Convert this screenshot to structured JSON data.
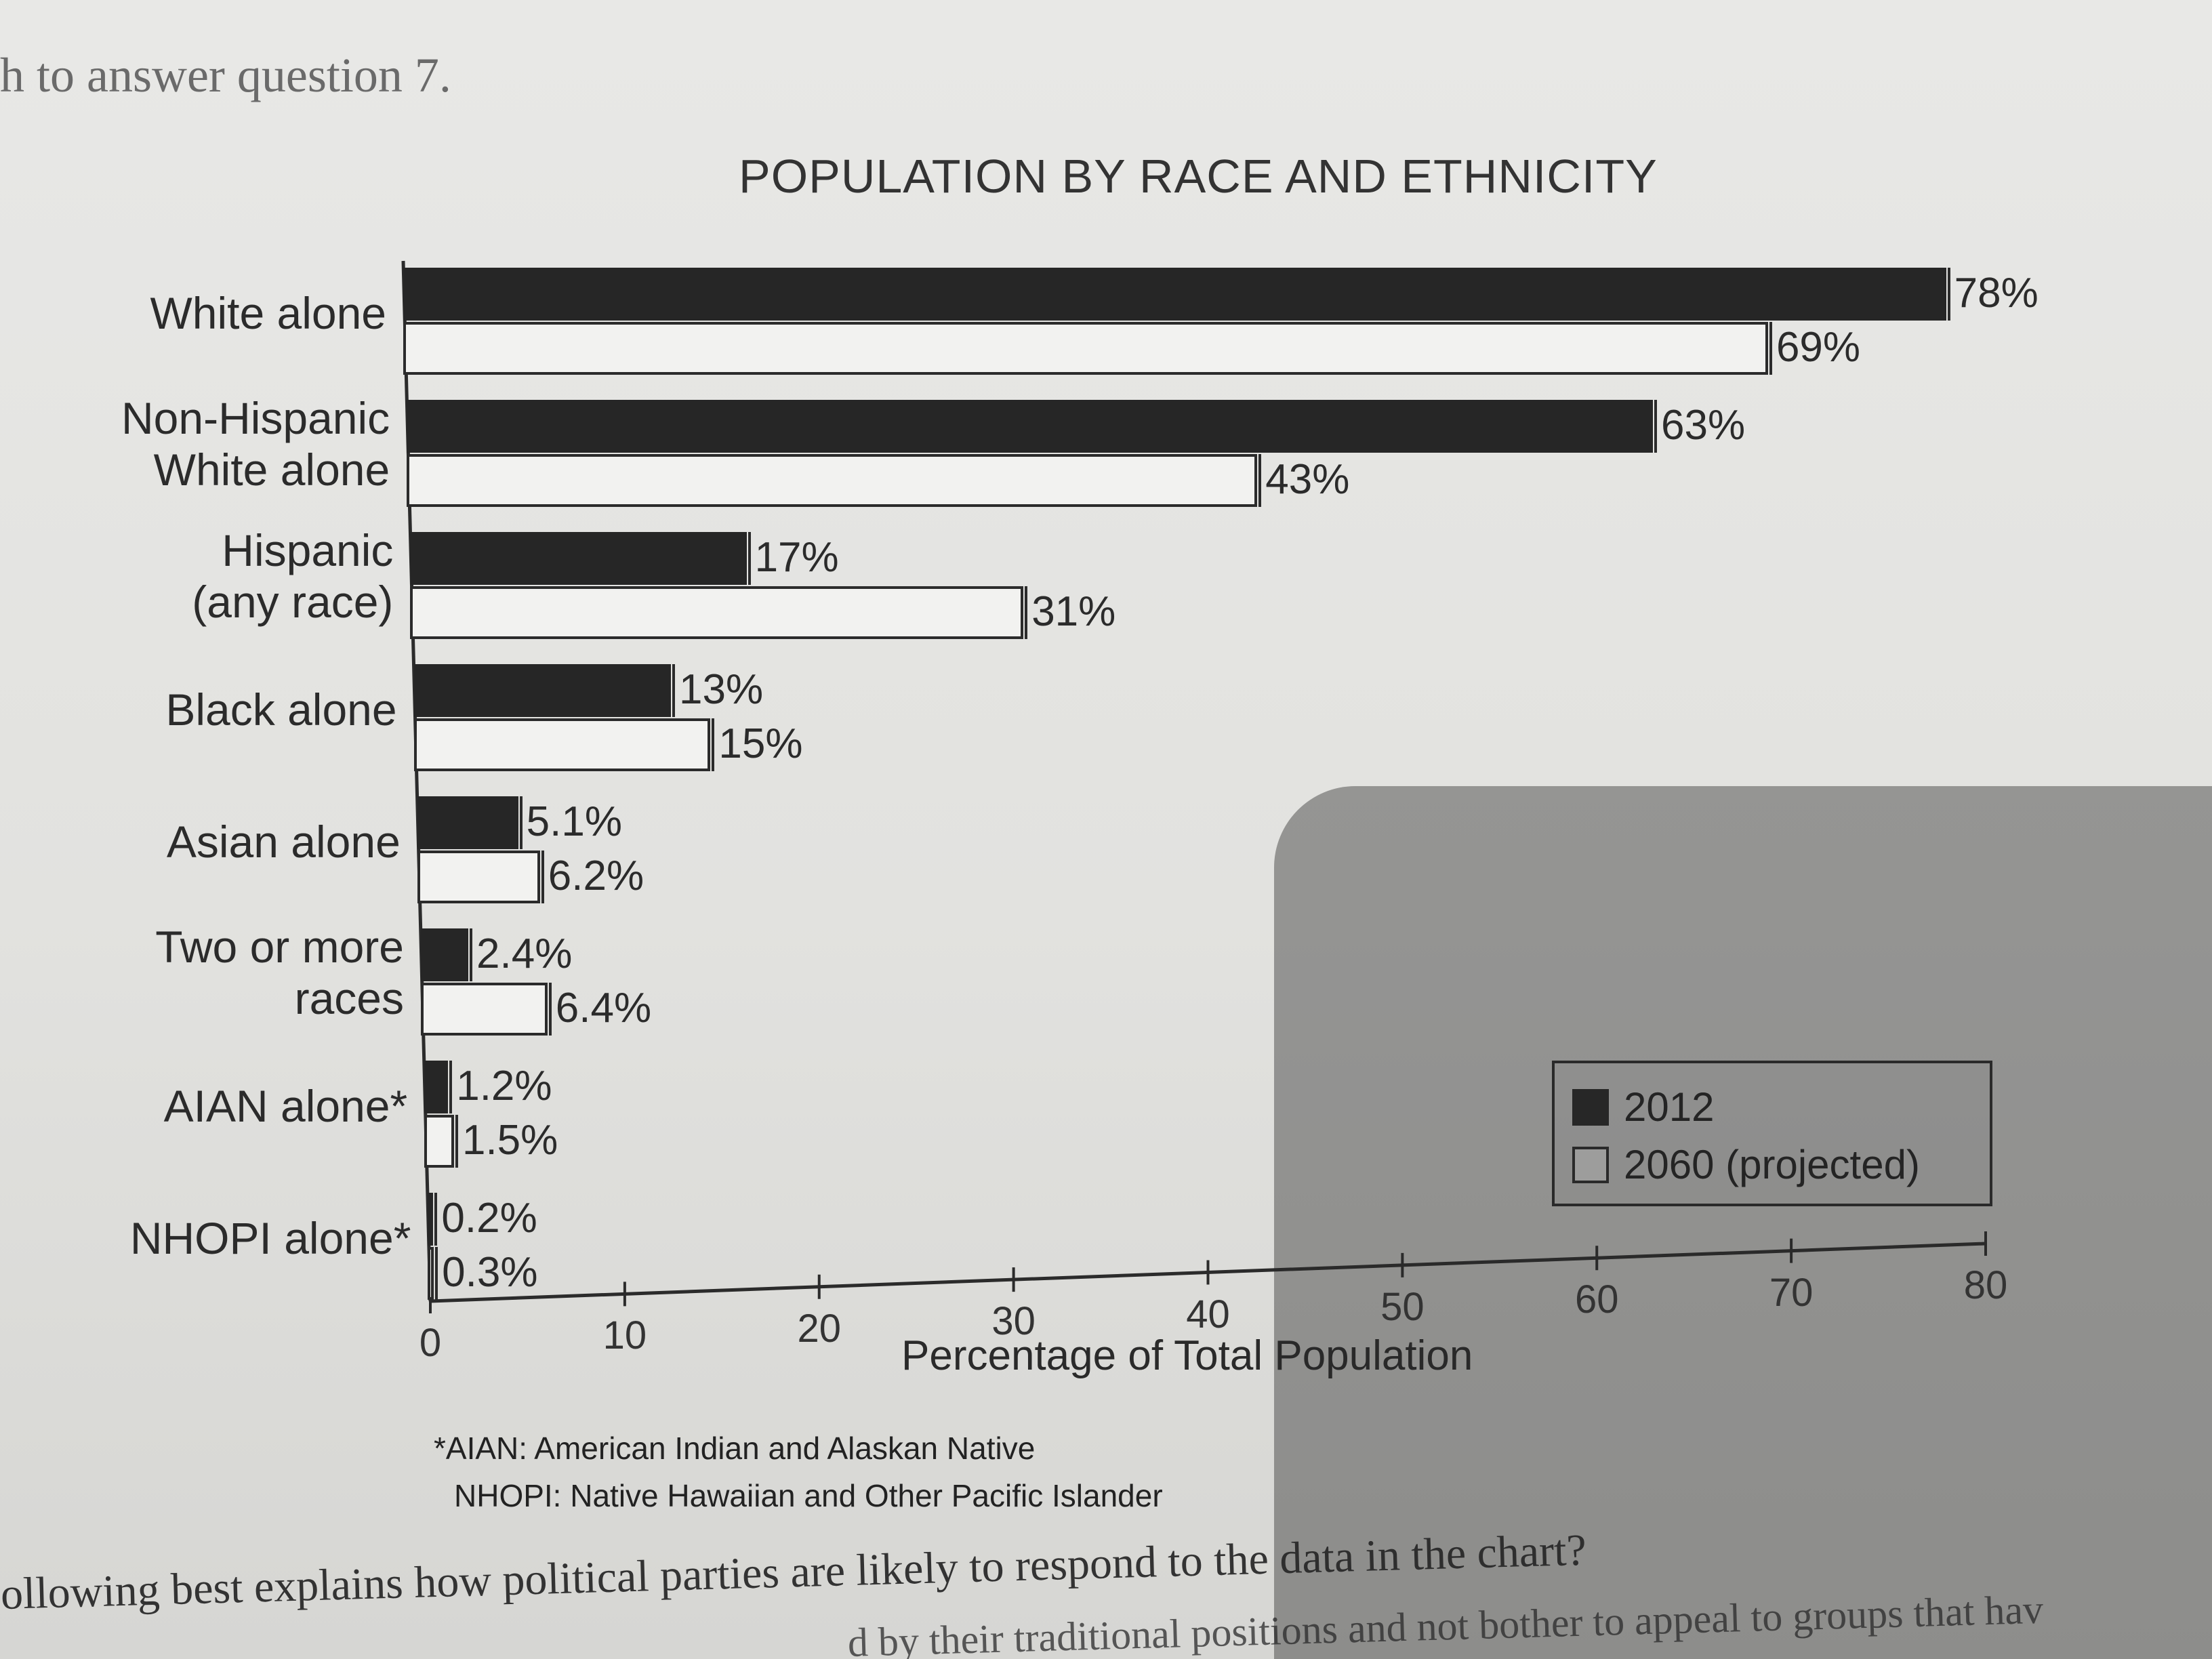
{
  "page": {
    "top_text": "h to answer question 7.",
    "bottom_text_1": "ollowing best explains how political parties are likely to respond to the data in the chart?",
    "bottom_text_2": "d by their traditional positions and not bother to appeal to groups that hav"
  },
  "chart_data": {
    "type": "bar",
    "orientation": "horizontal",
    "title": "POPULATION BY RACE AND ETHNICITY",
    "xlabel": "Percentage of Total Population",
    "ylabel": "",
    "xlim": [
      0,
      80
    ],
    "xticks": [
      "0",
      "10",
      "20",
      "30",
      "40",
      "50",
      "60",
      "70",
      "80"
    ],
    "categories": [
      "White alone",
      "Non-Hispanic\nWhite alone",
      "Hispanic\n(any race)",
      "Black alone",
      "Asian alone",
      "Two or more\nraces",
      "AIAN alone*",
      "NHOPI alone*"
    ],
    "series": [
      {
        "name": "2012",
        "values": [
          78,
          63,
          17,
          13,
          5.1,
          2.4,
          1.2,
          0.2
        ],
        "labels": [
          "78%",
          "63%",
          "17%",
          "13%",
          "5.1%",
          "2.4%",
          "1.2%",
          "0.2%"
        ],
        "color": "#262626"
      },
      {
        "name": "2060 (projected)",
        "values": [
          69,
          43,
          31,
          15,
          6.2,
          6.4,
          1.5,
          0.3
        ],
        "labels": [
          "69%",
          "43%",
          "31%",
          "15%",
          "6.2%",
          "6.4%",
          "1.5%",
          "0.3%"
        ],
        "color": "#f2f2f0"
      }
    ],
    "legend": {
      "position": "bottom-right",
      "entries": [
        "2012",
        "2060 (projected)"
      ]
    },
    "footnotes": [
      "*AIAN: American Indian and Alaskan Native",
      "NHOPI: Native Hawaiian and Other Pacific Islander"
    ],
    "grid": false
  }
}
